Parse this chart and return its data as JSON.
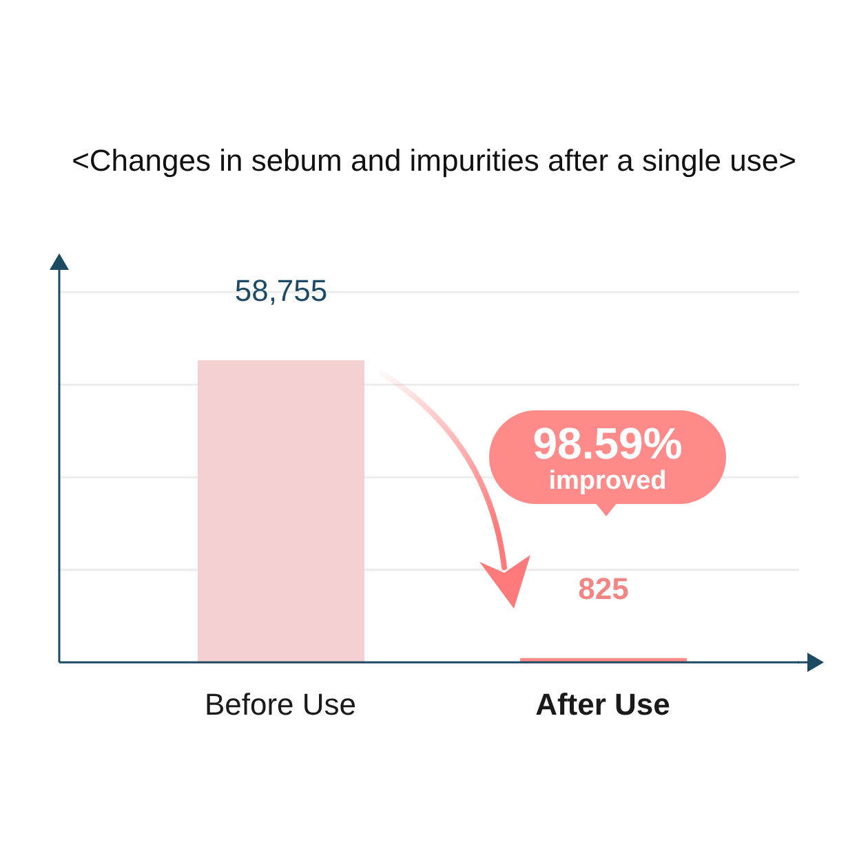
{
  "chart_data": {
    "type": "bar",
    "title": "<Changes in sebum and impurities after a single use>",
    "categories": [
      "Before Use",
      "After Use"
    ],
    "values": [
      58755,
      825
    ],
    "colors": [
      "#f5d0d0",
      "#ff8a8a"
    ],
    "value_labels": [
      "58,755",
      "825"
    ],
    "ylim": [
      0,
      79000
    ],
    "yticks": [
      {
        "value": 18000,
        "label": null
      },
      {
        "value": 36000,
        "label": null
      },
      {
        "value": 54000,
        "label": null
      },
      {
        "value": 72000,
        "label": null
      }
    ],
    "grid": "y",
    "tick_labels": "x",
    "annotations": [
      "98.59%",
      "improved"
    ]
  }
}
